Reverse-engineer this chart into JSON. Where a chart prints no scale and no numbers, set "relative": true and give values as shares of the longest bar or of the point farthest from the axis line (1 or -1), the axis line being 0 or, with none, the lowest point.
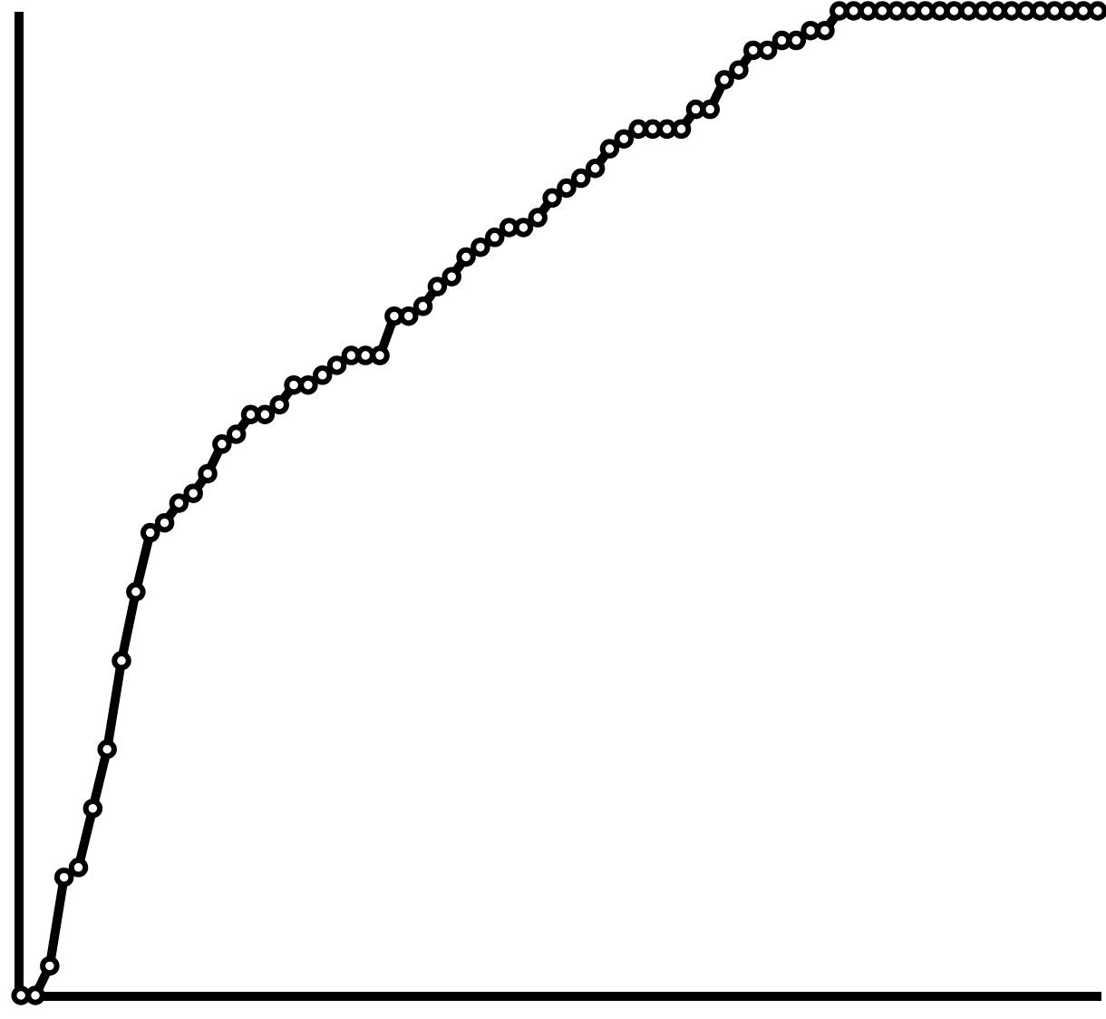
{
  "chart_data": {
    "type": "line",
    "relative": true,
    "marker": "circle",
    "line_style": "solid",
    "color": "#000000",
    "categories": [
      null,
      null,
      null,
      null,
      null,
      null,
      null,
      null,
      null,
      null,
      null,
      null,
      null,
      null,
      null,
      null,
      null,
      null,
      null,
      null,
      null,
      null,
      null,
      null,
      null,
      null,
      null,
      null,
      null,
      null,
      null,
      null,
      null,
      null,
      null,
      null,
      null,
      null,
      null,
      null,
      null,
      null,
      null,
      null,
      null,
      null,
      null,
      null,
      null,
      null,
      null,
      null,
      null,
      null,
      null,
      null,
      null,
      null,
      null,
      null,
      null,
      null,
      null,
      null,
      null,
      null,
      null,
      null,
      null,
      null,
      null,
      null,
      null,
      null,
      null,
      null
    ],
    "values": [
      0,
      0,
      0.03,
      0.12,
      0.13,
      0.19,
      0.25,
      0.34,
      0.41,
      0.47,
      0.48,
      0.5,
      0.51,
      0.53,
      0.56,
      0.57,
      0.59,
      0.59,
      0.6,
      0.62,
      0.62,
      0.63,
      0.64,
      0.65,
      0.65,
      0.65,
      0.69,
      0.69,
      0.7,
      0.72,
      0.73,
      0.75,
      0.76,
      0.77,
      0.78,
      0.78,
      0.79,
      0.81,
      0.82,
      0.83,
      0.84,
      0.86,
      0.87,
      0.88,
      0.88,
      0.88,
      0.88,
      0.9,
      0.9,
      0.93,
      0.94,
      0.96,
      0.96,
      0.97,
      0.97,
      0.98,
      0.98,
      1,
      1,
      1,
      1,
      1,
      1,
      1,
      1,
      1,
      1,
      1,
      1,
      1,
      1,
      1,
      1,
      1,
      1,
      1
    ]
  }
}
